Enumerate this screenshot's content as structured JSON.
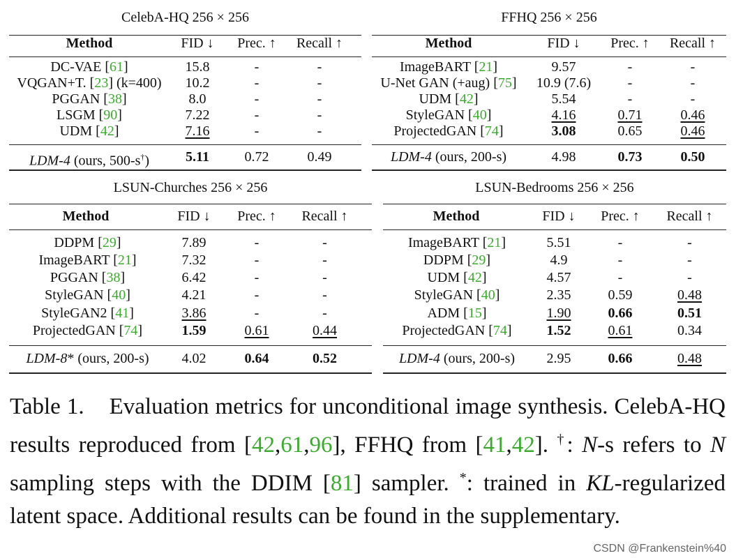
{
  "tables": [
    {
      "title": "CelebA-HQ 256 × 256",
      "headers": {
        "method": "Method",
        "fid": "FID ↓",
        "prec": "Prec. ↑",
        "recall": "Recall ↑"
      },
      "rows": [
        {
          "name": "DC-VAE",
          "ref": "61",
          "fid": "15.8",
          "prec": "-",
          "recall": "-"
        },
        {
          "name": "VQGAN+T.",
          "ref": "23",
          "suffix": " (k=400)",
          "fid": "10.2",
          "prec": "-",
          "recall": "-"
        },
        {
          "name": "PGGAN",
          "ref": "38",
          "fid": "8.0",
          "prec": "-",
          "recall": "-"
        },
        {
          "name": "LSGM",
          "ref": "90",
          "fid": "7.22",
          "prec": "-",
          "recall": "-"
        },
        {
          "name": "UDM",
          "ref": "42",
          "fid": "7.16",
          "prec": "-",
          "recall": "-"
        }
      ],
      "ours": {
        "model": "LDM-4",
        "rest": "(ours, 500-s",
        "dagger": "†",
        "close": ")",
        "fid": "5.11",
        "prec": "0.72",
        "recall": "0.49"
      }
    },
    {
      "title": "FFHQ 256 × 256",
      "headers": {
        "method": "Method",
        "fid": "FID ↓",
        "prec": "Prec. ↑",
        "recall": "Recall ↑"
      },
      "rows": [
        {
          "name": "ImageBART",
          "ref": "21",
          "fid": "9.57",
          "prec": "-",
          "recall": "-"
        },
        {
          "name": "U-Net GAN (+aug)",
          "ref": "75",
          "fid": "10.9 (7.6)",
          "prec": "-",
          "recall": "-"
        },
        {
          "name": "UDM",
          "ref": "42",
          "fid": "5.54",
          "prec": "-",
          "recall": "-"
        },
        {
          "name": "StyleGAN",
          "ref": "40",
          "fid": "4.16",
          "prec": "0.71",
          "recall": "0.46"
        },
        {
          "name": "ProjectedGAN",
          "ref": "74",
          "fid": "3.08",
          "prec": "0.65",
          "recall": "0.46"
        }
      ],
      "ours": {
        "model": "LDM-4",
        "rest": "(ours, 200-s)",
        "fid": "4.98",
        "prec": "0.73",
        "recall": "0.50"
      }
    },
    {
      "title": "LSUN-Churches 256 × 256",
      "headers": {
        "method": "Method",
        "fid": "FID ↓",
        "prec": "Prec. ↑",
        "recall": "Recall ↑"
      },
      "rows": [
        {
          "name": "DDPM",
          "ref": "29",
          "fid": "7.89",
          "prec": "-",
          "recall": "-"
        },
        {
          "name": "ImageBART",
          "ref": "21",
          "fid": "7.32",
          "prec": "-",
          "recall": "-"
        },
        {
          "name": "PGGAN",
          "ref": "38",
          "fid": "6.42",
          "prec": "-",
          "recall": "-"
        },
        {
          "name": "StyleGAN",
          "ref": "40",
          "fid": "4.21",
          "prec": "-",
          "recall": "-"
        },
        {
          "name": "StyleGAN2",
          "ref": "41",
          "fid": "3.86",
          "prec": "-",
          "recall": "-"
        },
        {
          "name": "ProjectedGAN",
          "ref": "74",
          "fid": "1.59",
          "prec": "0.61",
          "recall": "0.44"
        }
      ],
      "ours": {
        "model": "LDM-8",
        "star": "*",
        "rest": "(ours, 200-s)",
        "fid": "4.02",
        "prec": "0.64",
        "recall": "0.52"
      }
    },
    {
      "title": "LSUN-Bedrooms 256 × 256",
      "headers": {
        "method": "Method",
        "fid": "FID ↓",
        "prec": "Prec. ↑",
        "recall": "Recall ↑"
      },
      "rows": [
        {
          "name": "ImageBART",
          "ref": "21",
          "fid": "5.51",
          "prec": "-",
          "recall": "-"
        },
        {
          "name": "DDPM",
          "ref": "29",
          "fid": "4.9",
          "prec": "-",
          "recall": "-"
        },
        {
          "name": "UDM",
          "ref": "42",
          "fid": "4.57",
          "prec": "-",
          "recall": "-"
        },
        {
          "name": "StyleGAN",
          "ref": "40",
          "fid": "2.35",
          "prec": "0.59",
          "recall": "0.48"
        },
        {
          "name": "ADM",
          "ref": "15",
          "fid": "1.90",
          "prec": "0.66",
          "recall": "0.51"
        },
        {
          "name": "ProjectedGAN",
          "ref": "74",
          "fid": "1.52",
          "prec": "0.61",
          "recall": "0.34"
        }
      ],
      "ours": {
        "model": "LDM-4",
        "rest": "(ours, 200-s)",
        "fid": "2.95",
        "prec": "0.66",
        "recall": "0.48"
      }
    }
  ],
  "caption": {
    "label": "Table 1.",
    "t1": "Evaluation metrics for unconditional image synthesis. CelebA-HQ results reproduced from [",
    "r1": "42",
    "c1": ",",
    "r2": "61",
    "c2": ",",
    "r3": "96",
    "t2": "], FFHQ from [",
    "r4": "41",
    "c3": ",",
    "r5": "42",
    "t3": "]. ",
    "dagger": "†",
    "t4": ": ",
    "n1": "N",
    "t5": "-s refers to ",
    "n2": "N",
    "t6": " sampling steps with the DDIM [",
    "r6": "81",
    "t7": "] sampler. ",
    "star": "*",
    "t8": ": trained in ",
    "kl": "KL",
    "t9": "-regularized latent space. Additional results can be found in the supplementary."
  },
  "watermark": "CSDN @Frankenstein%40"
}
